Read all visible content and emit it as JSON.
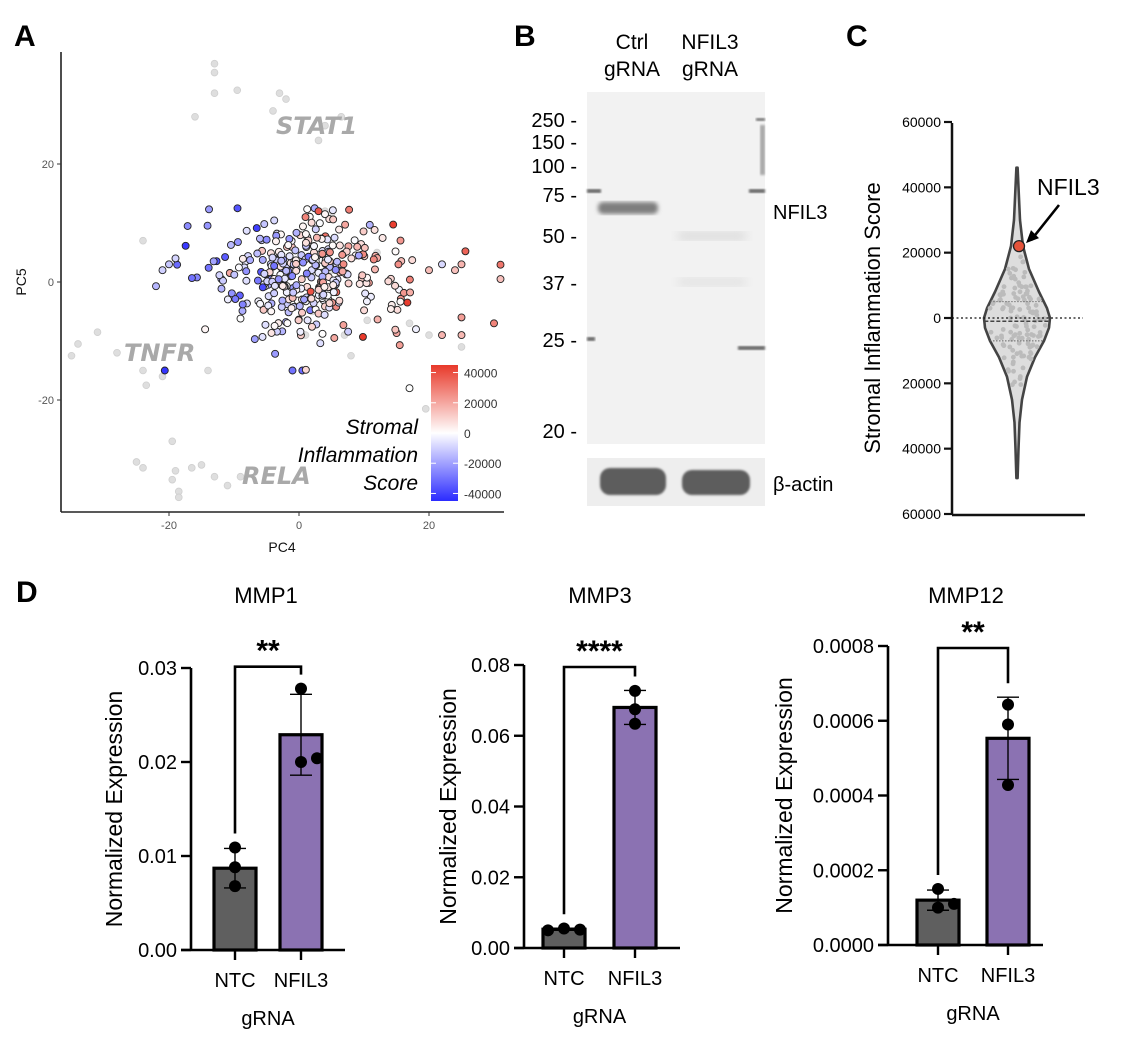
{
  "figure": {
    "panels": [
      "A",
      "B",
      "C",
      "D"
    ]
  },
  "chart_data": [
    {
      "panel": "A",
      "type": "scatter",
      "title": "",
      "xlabel": "PC4",
      "ylabel": "PC5",
      "xlim": [
        -37,
        34
      ],
      "ylim": [
        -38,
        39
      ],
      "xticks": [
        -20,
        0,
        20
      ],
      "yticks": [
        -20,
        0,
        20
      ],
      "grid": false,
      "annotations": [
        "STAT1",
        "TNFR",
        "RELA"
      ],
      "legend": {
        "title": [
          "Stromal",
          "Inflammation",
          "Score"
        ],
        "placement": "bottom-right",
        "colorbar_ticks": [
          40000,
          20000,
          0,
          -20000,
          -40000
        ],
        "colorbar_range": [
          -45000,
          45000
        ],
        "colors": {
          "low": "#2b2bff",
          "mid": "#ffffff",
          "high": "#e8392a"
        }
      },
      "grey_points": [
        [
          -13,
          37
        ],
        [
          -13,
          35.5
        ],
        [
          -13,
          32
        ],
        [
          -9.5,
          32.5
        ],
        [
          -3,
          32
        ],
        [
          -2,
          31
        ],
        [
          -16,
          28
        ],
        [
          -4,
          29
        ],
        [
          4,
          26.5
        ],
        [
          6.5,
          28
        ],
        [
          3,
          24
        ],
        [
          4,
          12
        ],
        [
          5,
          11.5
        ],
        [
          -24,
          7
        ],
        [
          -31,
          -8.5
        ],
        [
          -34,
          -10.5
        ],
        [
          -35,
          -12.5
        ],
        [
          -28,
          -12
        ],
        [
          -24,
          -15
        ],
        [
          -21,
          -16
        ],
        [
          -14,
          -15
        ],
        [
          -23.5,
          -17.5
        ],
        [
          -19.5,
          -27
        ],
        [
          -25,
          -30.5
        ],
        [
          -24,
          -31.5
        ],
        [
          -19,
          -32
        ],
        [
          -19.5,
          -33.5
        ],
        [
          -16.5,
          -31.5
        ],
        [
          -15,
          -31
        ],
        [
          -13,
          -33
        ],
        [
          -11,
          -34.5
        ],
        [
          -9,
          -33
        ],
        [
          -18.5,
          -35.5
        ],
        [
          -18.5,
          -36.5
        ],
        [
          7,
          -9
        ],
        [
          8,
          -12.5
        ],
        [
          10.5,
          -6.5
        ],
        [
          17,
          -7
        ],
        [
          20,
          -9
        ],
        [
          25,
          -11
        ],
        [
          19.5,
          -21.5
        ],
        [
          2,
          -5
        ],
        [
          5,
          2
        ],
        [
          12,
          5
        ],
        [
          1,
          -9
        ]
      ],
      "colored_points_note": "approx. 350 cells, PC4 -22..31, PC5 -15..12, colored by score",
      "colored_points_seed": 7
    },
    {
      "panel": "B",
      "type": "western_blot",
      "lanes": [
        [
          "Ctrl",
          "gRNA"
        ],
        [
          "NFIL3",
          "gRNA"
        ]
      ],
      "marker_kDa": [
        "250",
        "150",
        "100",
        "75",
        "50",
        "37",
        "25",
        "20"
      ],
      "band_labels": [
        "NFIL3",
        "β-actin"
      ],
      "bands": [
        {
          "lane": "Ctrl gRNA",
          "target": "NFIL3",
          "kDa_approx": 65,
          "intensity": "moderate"
        },
        {
          "lane": "NFIL3 gRNA",
          "target": "NFIL3",
          "kDa_approx": 65,
          "intensity": "absent"
        },
        {
          "lane": "Ctrl gRNA",
          "target": "β-actin",
          "intensity": "strong"
        },
        {
          "lane": "NFIL3 gRNA",
          "target": "β-actin",
          "intensity": "strong"
        }
      ]
    },
    {
      "panel": "C",
      "type": "violin",
      "ylabel": "Stromal Inflammation Score",
      "ylim": [
        -60000,
        60000
      ],
      "yticks": [
        60000,
        40000,
        20000,
        0,
        -20000,
        -40000,
        -60000
      ],
      "ytick_labels": [
        "60000",
        "40000",
        "20000",
        "0",
        "20000",
        "40000",
        "60000"
      ],
      "reference_line": 0,
      "median": -1000,
      "quartiles": [
        -7000,
        5000
      ],
      "range": [
        -49000,
        46000
      ],
      "highlight": {
        "label": "NFIL3",
        "value": 22000,
        "color": "#e5533a"
      }
    },
    {
      "panel": "D",
      "type": "bar",
      "title": "MMP1",
      "xlabel": "gRNA",
      "ylabel": "Normalized Expression",
      "categories": [
        "NTC",
        "NFIL3"
      ],
      "values": [
        0.0087,
        0.0229
      ],
      "errors": [
        0.0021,
        0.0043
      ],
      "points": [
        [
          0.0109,
          0.0088,
          0.0068
        ],
        [
          0.0278,
          0.02,
          0.0204
        ]
      ],
      "ylim": [
        0,
        0.03
      ],
      "yticks": [
        "0.00",
        "0.01",
        "0.02",
        "0.03"
      ],
      "significance": "**",
      "colors": [
        "#5f5f5f",
        "#8b72b2"
      ]
    },
    {
      "panel": "D",
      "type": "bar",
      "title": "MMP3",
      "xlabel": "gRNA",
      "ylabel": "Normalized Expression",
      "categories": [
        "NTC",
        "NFIL3"
      ],
      "values": [
        0.0053,
        0.068
      ],
      "errors": [
        0.0003,
        0.0048
      ],
      "points": [
        [
          0.005,
          0.0055,
          0.0052
        ],
        [
          0.0727,
          0.0675,
          0.0634
        ]
      ],
      "ylim": [
        0,
        0.08
      ],
      "yticks": [
        "0.00",
        "0.02",
        "0.04",
        "0.06",
        "0.08"
      ],
      "significance": "****",
      "colors": [
        "#5f5f5f",
        "#8b72b2"
      ]
    },
    {
      "panel": "D",
      "type": "bar",
      "title": "MMP12",
      "xlabel": "gRNA",
      "ylabel": "Normalized Expression",
      "categories": [
        "NTC",
        "NFIL3"
      ],
      "values": [
        0.00012,
        0.000553
      ],
      "errors": [
        2.7e-05,
        0.00011
      ],
      "points": [
        [
          0.00015,
          0.0001,
          0.00011
        ],
        [
          0.000643,
          0.00059,
          0.000428
        ]
      ],
      "ylim": [
        0,
        0.0008
      ],
      "yticks": [
        "0.0000",
        "0.0002",
        "0.0004",
        "0.0006",
        "0.0008"
      ],
      "significance": "**",
      "colors": [
        "#5f5f5f",
        "#8b72b2"
      ]
    }
  ]
}
